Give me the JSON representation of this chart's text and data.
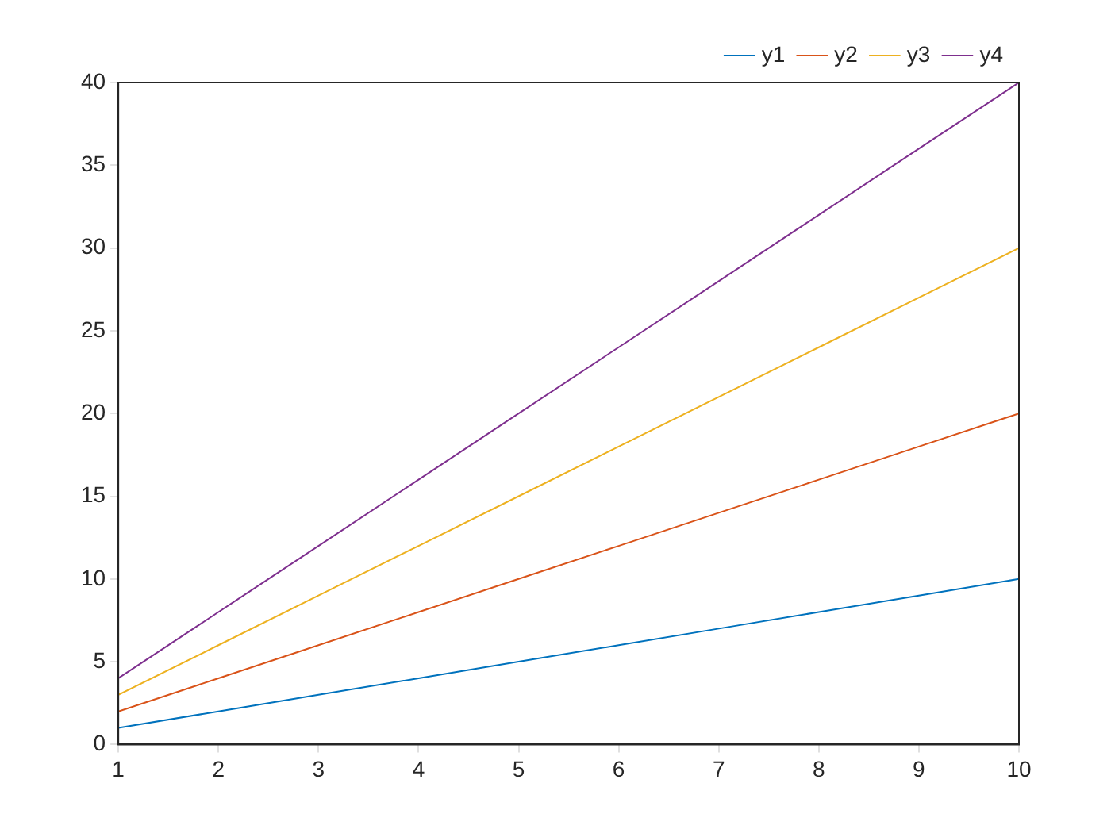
{
  "chart_data": {
    "type": "line",
    "x": [
      1,
      2,
      3,
      4,
      5,
      6,
      7,
      8,
      9,
      10
    ],
    "series": [
      {
        "name": "y1",
        "color": "#0072bd",
        "values": [
          1,
          2,
          3,
          4,
          5,
          6,
          7,
          8,
          9,
          10
        ]
      },
      {
        "name": "y2",
        "color": "#d95319",
        "values": [
          2,
          4,
          6,
          8,
          10,
          12,
          14,
          16,
          18,
          20
        ]
      },
      {
        "name": "y3",
        "color": "#edb120",
        "values": [
          3,
          6,
          9,
          12,
          15,
          18,
          21,
          24,
          27,
          30
        ]
      },
      {
        "name": "y4",
        "color": "#7e2f8e",
        "values": [
          4,
          8,
          12,
          16,
          20,
          24,
          28,
          32,
          36,
          40
        ]
      }
    ],
    "xlim": [
      1,
      10
    ],
    "xticks": [
      1,
      2,
      3,
      4,
      5,
      6,
      7,
      8,
      9,
      10
    ],
    "ylim": [
      0,
      40
    ],
    "yticks": [
      0,
      5,
      10,
      15,
      20,
      25,
      30,
      35,
      40
    ],
    "grid": false,
    "legend": "top right",
    "marker": "none",
    "line_style": "solid"
  }
}
